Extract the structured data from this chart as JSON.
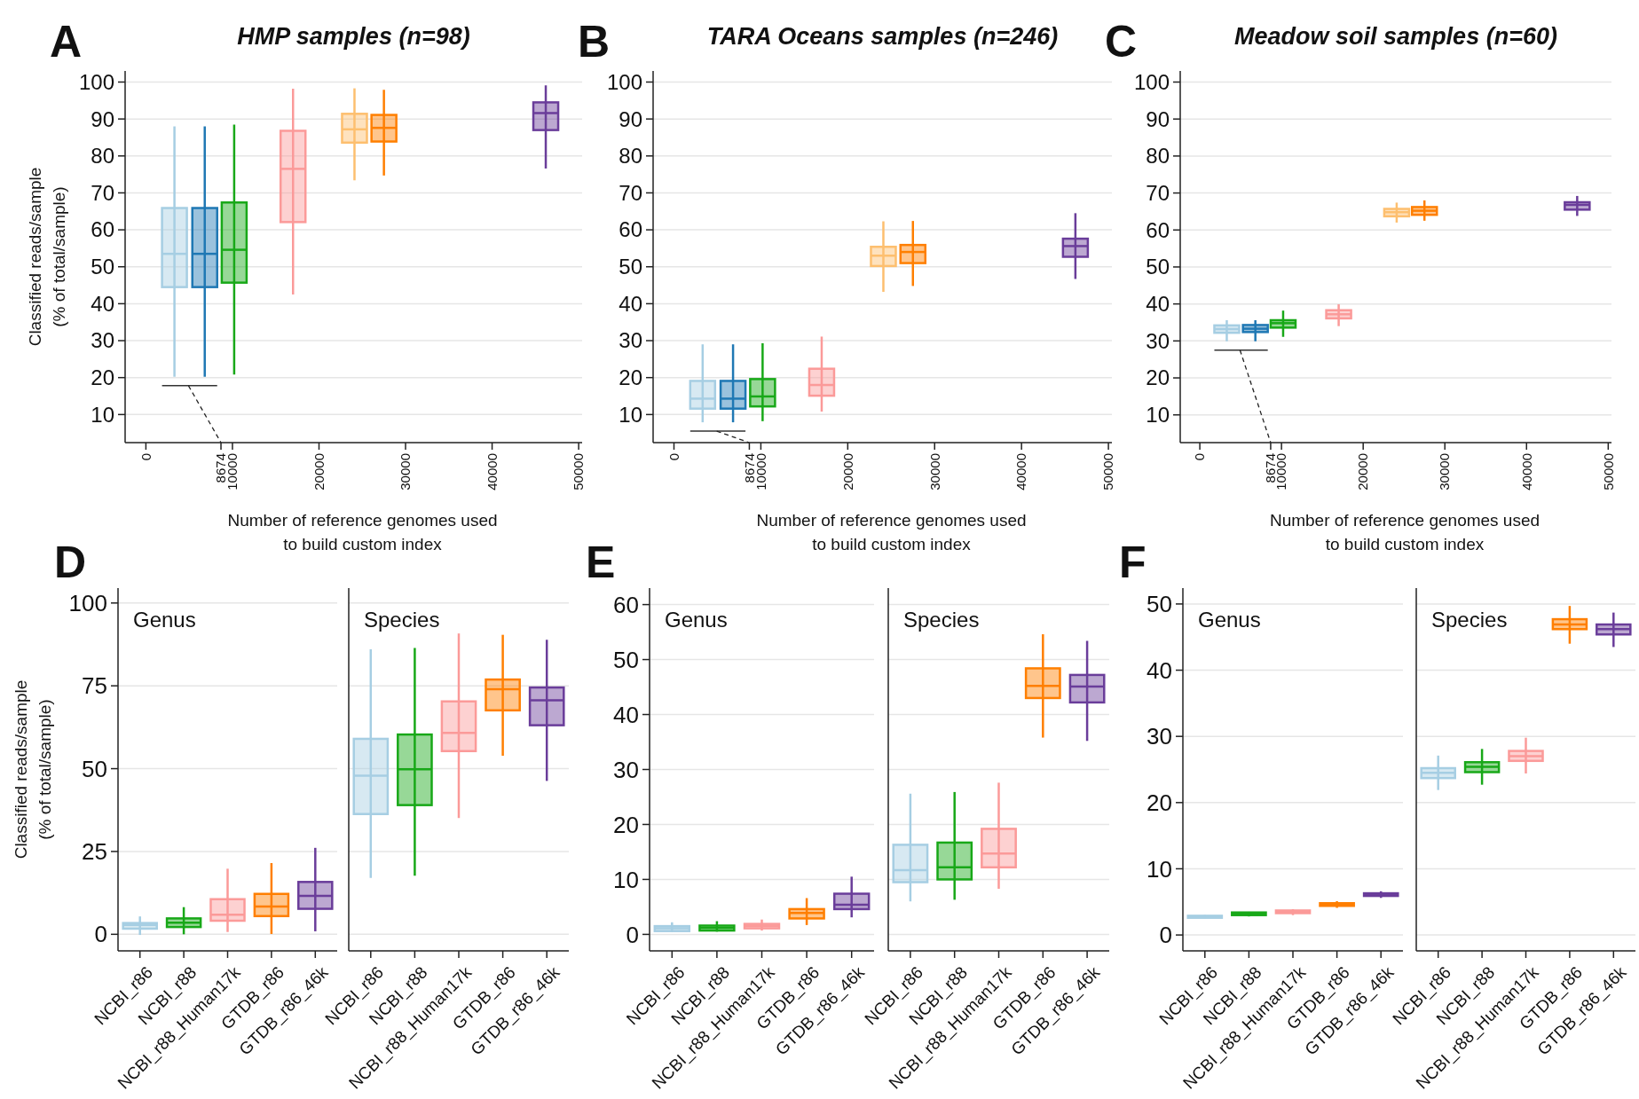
{
  "chart_data": [
    {
      "type": "box",
      "title": "HMP samples (n=98)",
      "xlabel": "Number of reference genomes used\nto build custom index",
      "ylabel": "Classified reads/sample\n(% of total/sample)",
      "annotations": [
        "A"
      ],
      "xlim": [
        -2400,
        50400
      ],
      "xticks": [
        0,
        8674,
        10000,
        20000,
        30000,
        40000,
        50000
      ],
      "ylim": [
        2.4,
        103
      ],
      "yticks": [
        10,
        20,
        30,
        40,
        50,
        60,
        70,
        80,
        90,
        100
      ],
      "grid": "y",
      "series": [
        {
          "color": "#a6cee3",
          "x": [
            3300
          ],
          "boxes": [
            {
              "low": 20.2,
              "q1": 44.5,
              "median": 53.5,
              "q3": 65.9,
              "high": 88
            }
          ]
        },
        {
          "color": "#1f78b4",
          "x": [
            6800
          ],
          "boxes": [
            {
              "low": 20.2,
              "q1": 44.5,
              "median": 53.5,
              "q3": 65.9,
              "high": 88
            }
          ]
        },
        {
          "color": "#18a818",
          "x": [
            10200
          ],
          "boxes": [
            {
              "low": 20.8,
              "q1": 45.7,
              "median": 54.6,
              "q3": 67.4,
              "high": 88.5
            }
          ]
        },
        {
          "color": "#fb9a99",
          "x": [
            17000
          ],
          "boxes": [
            {
              "low": 42.5,
              "q1": 62.1,
              "median": 76.5,
              "q3": 86.8,
              "high": 98.2
            }
          ]
        },
        {
          "color": "#fdbf6f",
          "x": [
            24100
          ],
          "boxes": [
            {
              "low": 73.4,
              "q1": 83.6,
              "median": 87.2,
              "q3": 91.4,
              "high": 98.3
            }
          ]
        },
        {
          "color": "#ff7f00",
          "x": [
            27500
          ],
          "boxes": [
            {
              "low": 74.7,
              "q1": 83.9,
              "median": 87.6,
              "q3": 91.1,
              "high": 97.9
            }
          ]
        },
        {
          "color": "#6a3d9a",
          "x": [
            46200
          ],
          "boxes": [
            {
              "low": 76.6,
              "q1": 87,
              "median": 91.6,
              "q3": 94.5,
              "high": 99.1
            }
          ]
        }
      ]
    },
    {
      "type": "box",
      "title": "TARA Oceans samples (n=246)",
      "xlabel": "Number of reference genomes used\nto build custom index",
      "annotations": [
        "B"
      ],
      "xlim": [
        -2400,
        50400
      ],
      "xticks": [
        0,
        8674,
        10000,
        20000,
        30000,
        40000,
        50000
      ],
      "ylim": [
        2.4,
        103
      ],
      "yticks": [
        10,
        20,
        30,
        40,
        50,
        60,
        70,
        80,
        90,
        100
      ],
      "grid": "y",
      "series": [
        {
          "color": "#a6cee3",
          "x": [
            3300
          ],
          "boxes": [
            {
              "low": 7.9,
              "q1": 11.6,
              "median": 14.3,
              "q3": 19.1,
              "high": 29
            }
          ]
        },
        {
          "color": "#1f78b4",
          "x": [
            6800
          ],
          "boxes": [
            {
              "low": 7.9,
              "q1": 11.6,
              "median": 14.3,
              "q3": 19.1,
              "high": 29
            }
          ]
        },
        {
          "color": "#18a818",
          "x": [
            10200
          ],
          "boxes": [
            {
              "low": 8.2,
              "q1": 12.2,
              "median": 14.9,
              "q3": 19.6,
              "high": 29.3
            }
          ]
        },
        {
          "color": "#fb9a99",
          "x": [
            17000
          ],
          "boxes": [
            {
              "low": 10.8,
              "q1": 15.1,
              "median": 18,
              "q3": 22.4,
              "high": 31.1
            }
          ]
        },
        {
          "color": "#fdbf6f",
          "x": [
            24100
          ],
          "boxes": [
            {
              "low": 43.2,
              "q1": 50.2,
              "median": 53,
              "q3": 55.4,
              "high": 62.3
            }
          ]
        },
        {
          "color": "#ff7f00",
          "x": [
            27500
          ],
          "boxes": [
            {
              "low": 44.8,
              "q1": 51,
              "median": 54,
              "q3": 55.9,
              "high": 62.4
            }
          ]
        },
        {
          "color": "#6a3d9a",
          "x": [
            46200
          ],
          "boxes": [
            {
              "low": 46.7,
              "q1": 52.7,
              "median": 55.6,
              "q3": 57.6,
              "high": 64.5
            }
          ]
        }
      ]
    },
    {
      "type": "box",
      "title": "Meadow soil samples (n=60)",
      "xlabel": "Number of reference genomes used\nto build custom index",
      "annotations": [
        "C"
      ],
      "xlim": [
        -2400,
        50400
      ],
      "xticks": [
        0,
        8674,
        10000,
        20000,
        30000,
        40000,
        50000
      ],
      "ylim": [
        2.5,
        103
      ],
      "yticks": [
        10,
        20,
        30,
        40,
        50,
        60,
        70,
        80,
        90,
        100
      ],
      "grid": "y",
      "series": [
        {
          "color": "#a6cee3",
          "x": [
            3300
          ],
          "boxes": [
            {
              "low": 29.9,
              "q1": 32.2,
              "median": 33.2,
              "q3": 34.2,
              "high": 35.6
            }
          ]
        },
        {
          "color": "#1f78b4",
          "x": [
            6800
          ],
          "boxes": [
            {
              "low": 29.9,
              "q1": 32.4,
              "median": 33.3,
              "q3": 34.3,
              "high": 35.6
            }
          ]
        },
        {
          "color": "#18a818",
          "x": [
            10200
          ],
          "boxes": [
            {
              "low": 31.1,
              "q1": 33.6,
              "median": 34.8,
              "q3": 35.6,
              "high": 38.2
            }
          ]
        },
        {
          "color": "#fb9a99",
          "x": [
            17000
          ],
          "boxes": [
            {
              "low": 34,
              "q1": 36.1,
              "median": 37.2,
              "q3": 38.3,
              "high": 39.9
            }
          ]
        },
        {
          "color": "#fdbf6f",
          "x": [
            24100
          ],
          "boxes": [
            {
              "low": 62,
              "q1": 63.7,
              "median": 64.8,
              "q3": 65.7,
              "high": 67.4
            }
          ]
        },
        {
          "color": "#ff7f00",
          "x": [
            27500
          ],
          "boxes": [
            {
              "low": 62.5,
              "q1": 64.1,
              "median": 65.2,
              "q3": 66.2,
              "high": 68
            }
          ]
        },
        {
          "color": "#6a3d9a",
          "x": [
            46200
          ],
          "boxes": [
            {
              "low": 63.8,
              "q1": 65.5,
              "median": 66.8,
              "q3": 67.5,
              "high": 69.2
            }
          ]
        }
      ]
    },
    {
      "type": "box",
      "title": "Genus",
      "ylabel": "Classified reads/sample\n(% of total/sample)",
      "annotations": [
        "D"
      ],
      "categories": [
        "NCBI_r86",
        "NCBI_r88",
        "NCBI_r88_Human17k",
        "GTDB_r86",
        "GTDB_r86_46k"
      ],
      "colors": [
        "#a6cee3",
        "#18a818",
        "#fb9a99",
        "#ff7f00",
        "#6a3d9a"
      ],
      "ylim": [
        -5,
        104.5
      ],
      "yticks": [
        0,
        25,
        50,
        75,
        100
      ],
      "grid": "y",
      "boxes": [
        {
          "low": -0.2,
          "q1": 1.7,
          "median": 2.8,
          "q3": 3.4,
          "high": 5.4
        },
        {
          "low": 0,
          "q1": 2.2,
          "median": 3.5,
          "q3": 4.8,
          "high": 8.2
        },
        {
          "low": 0.7,
          "q1": 4.1,
          "median": 5.9,
          "q3": 10.6,
          "high": 19.8
        },
        {
          "low": 0.1,
          "q1": 5.5,
          "median": 8.4,
          "q3": 12.2,
          "high": 21.5
        },
        {
          "low": 0.9,
          "q1": 7.7,
          "median": 11.6,
          "q3": 15.8,
          "high": 26.1
        }
      ]
    },
    {
      "type": "box",
      "title": "Species",
      "categories": [
        "NCBI_r86",
        "NCBI_r88",
        "NCBI_r88_Human17k",
        "GTDB_r86",
        "GTDB_r86_46k"
      ],
      "colors": [
        "#a6cee3",
        "#18a818",
        "#fb9a99",
        "#ff7f00",
        "#6a3d9a"
      ],
      "ylim": [
        -5,
        104.5
      ],
      "yticks": [
        0,
        25,
        50,
        75,
        100
      ],
      "grid": "y",
      "tick_labels": "x",
      "boxes": [
        {
          "low": 17,
          "q1": 36.3,
          "median": 47.9,
          "q3": 59,
          "high": 86
        },
        {
          "low": 17.7,
          "q1": 39,
          "median": 49.8,
          "q3": 60.3,
          "high": 86.4
        },
        {
          "low": 35.1,
          "q1": 55.3,
          "median": 60.8,
          "q3": 70.3,
          "high": 90.8
        },
        {
          "low": 53.9,
          "q1": 67.6,
          "median": 74,
          "q3": 76.9,
          "high": 90.4
        },
        {
          "low": 46.3,
          "q1": 63.1,
          "median": 70.6,
          "q3": 74.5,
          "high": 88.9
        }
      ]
    },
    {
      "type": "box",
      "title": "Genus",
      "annotations": [
        "E"
      ],
      "categories": [
        "NCBI_r86",
        "NCBI_r88",
        "NCBI_r88_Human17k",
        "GTDB_r86",
        "GTDB_r86_46k"
      ],
      "colors": [
        "#a6cee3",
        "#18a818",
        "#fb9a99",
        "#ff7f00",
        "#6a3d9a"
      ],
      "ylim": [
        -3,
        63
      ],
      "yticks": [
        0,
        10,
        20,
        30,
        40,
        50,
        60
      ],
      "grid": "y",
      "boxes": [
        {
          "low": 0.4,
          "q1": 0.6,
          "median": 1.1,
          "q3": 1.5,
          "high": 2.2
        },
        {
          "low": 0.5,
          "q1": 0.7,
          "median": 1.2,
          "q3": 1.6,
          "high": 2.4
        },
        {
          "low": 0.7,
          "q1": 1.1,
          "median": 1.5,
          "q3": 1.9,
          "high": 2.7
        },
        {
          "low": 1.7,
          "q1": 2.9,
          "median": 3.9,
          "q3": 4.6,
          "high": 6.6
        },
        {
          "low": 3.1,
          "q1": 4.6,
          "median": 5.4,
          "q3": 7.4,
          "high": 10.5
        }
      ]
    },
    {
      "type": "box",
      "title": "Species",
      "categories": [
        "NCBI_r86",
        "NCBI_r88",
        "NCBI_r88_Human17k",
        "GTDB_r86",
        "GTDB_r86_46k"
      ],
      "colors": [
        "#a6cee3",
        "#18a818",
        "#fb9a99",
        "#ff7f00",
        "#6a3d9a"
      ],
      "ylim": [
        -3,
        63
      ],
      "yticks": [
        0,
        10,
        20,
        30,
        40,
        50,
        60
      ],
      "grid": "y",
      "tick_labels": "x",
      "boxes": [
        {
          "low": 6,
          "q1": 9.5,
          "median": 11.7,
          "q3": 16.3,
          "high": 25.6
        },
        {
          "low": 6.3,
          "q1": 10,
          "median": 12.2,
          "q3": 16.7,
          "high": 25.9
        },
        {
          "low": 8.3,
          "q1": 12.2,
          "median": 14.7,
          "q3": 19.2,
          "high": 27.6
        },
        {
          "low": 35.8,
          "q1": 43,
          "median": 45.2,
          "q3": 48.4,
          "high": 54.6
        },
        {
          "low": 35.2,
          "q1": 42.2,
          "median": 45.1,
          "q3": 47.2,
          "high": 53.4
        }
      ]
    },
    {
      "type": "box",
      "title": "Genus",
      "annotations": [
        "F"
      ],
      "categories": [
        "NCBI_r86",
        "NCBI_r88",
        "NCBI_r88_Human17k",
        "GTDB_r86",
        "GTDB_r86_46k"
      ],
      "colors": [
        "#a6cee3",
        "#18a818",
        "#fb9a99",
        "#ff7f00",
        "#6a3d9a"
      ],
      "ylim": [
        -2.4,
        52.4
      ],
      "yticks": [
        0,
        10,
        20,
        30,
        40,
        50
      ],
      "grid": "y",
      "boxes": [
        {
          "low": 2.5,
          "q1": 2.6,
          "median": 2.8,
          "q3": 2.9,
          "high": 3
        },
        {
          "low": 2.8,
          "q1": 3,
          "median": 3.2,
          "q3": 3.4,
          "high": 3.5
        },
        {
          "low": 3,
          "q1": 3.3,
          "median": 3.5,
          "q3": 3.7,
          "high": 3.9
        },
        {
          "low": 4.1,
          "q1": 4.4,
          "median": 4.6,
          "q3": 4.8,
          "high": 5.1
        },
        {
          "low": 5.6,
          "q1": 5.9,
          "median": 6.1,
          "q3": 6.3,
          "high": 6.6
        }
      ]
    },
    {
      "type": "box",
      "title": "Species",
      "categories": [
        "NCBI_r86",
        "NCBI_r88",
        "NCBI_r88_Human17k",
        "GTDB_r86",
        "GTDB_r86_46k"
      ],
      "colors": [
        "#a6cee3",
        "#18a818",
        "#fb9a99",
        "#ff7f00",
        "#6a3d9a"
      ],
      "ylim": [
        -2.4,
        52.4
      ],
      "yticks": [
        0,
        10,
        20,
        30,
        40,
        50
      ],
      "grid": "y",
      "tick_labels": "x",
      "boxes": [
        {
          "low": 21.9,
          "q1": 23.7,
          "median": 24.5,
          "q3": 25.2,
          "high": 27.1
        },
        {
          "low": 22.7,
          "q1": 24.6,
          "median": 25.4,
          "q3": 26.1,
          "high": 28.1
        },
        {
          "low": 24.4,
          "q1": 26.3,
          "median": 27,
          "q3": 27.8,
          "high": 29.8
        },
        {
          "low": 44,
          "q1": 46.2,
          "median": 46.9,
          "q3": 47.7,
          "high": 49.7
        },
        {
          "low": 43.5,
          "q1": 45.4,
          "median": 46.2,
          "q3": 46.9,
          "high": 48.7
        }
      ]
    }
  ]
}
